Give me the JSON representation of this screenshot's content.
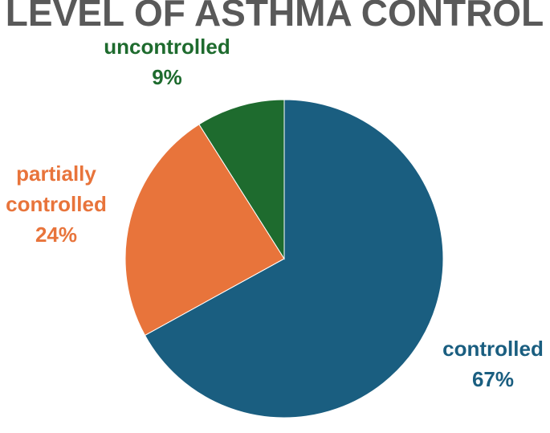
{
  "chart_data": {
    "type": "pie",
    "title": "LEVEL OF ASTHMA CONTROL",
    "categories": [
      "controlled",
      "partially controlled",
      "uncontrolled"
    ],
    "values": [
      67,
      24,
      9
    ],
    "value_labels": [
      "67%",
      "24%",
      "9%"
    ],
    "colors": [
      "#1a5e80",
      "#e8743b",
      "#1e6b2e"
    ]
  }
}
